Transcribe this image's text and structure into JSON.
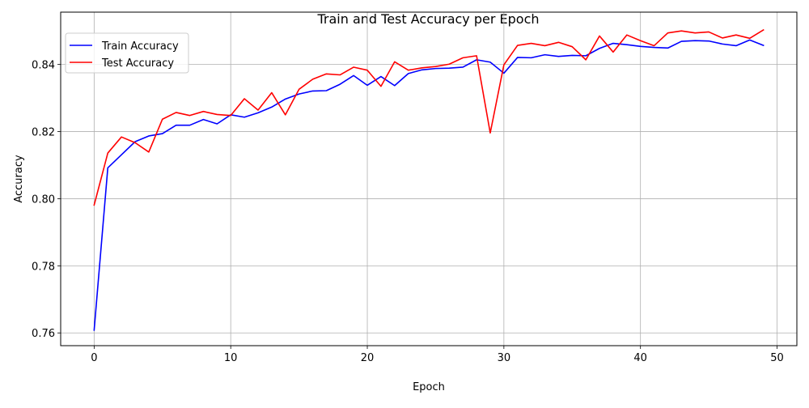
{
  "chart_data": {
    "type": "line",
    "title": "Train and Test Accuracy per Epoch",
    "xlabel": "Epoch",
    "ylabel": "Accuracy",
    "xlim": [
      -2.45,
      51.45
    ],
    "ylim": [
      0.7562,
      0.8556
    ],
    "x_ticks": [
      0,
      10,
      20,
      30,
      40,
      50
    ],
    "y_ticks": [
      0.76,
      0.78,
      0.8,
      0.82,
      0.84
    ],
    "x_tick_labels": [
      "0",
      "10",
      "20",
      "30",
      "40",
      "50"
    ],
    "y_tick_labels": [
      "0.76",
      "0.78",
      "0.80",
      "0.82",
      "0.84"
    ],
    "grid": true,
    "legend_position": "top-left",
    "x": [
      0,
      1,
      2,
      3,
      4,
      5,
      6,
      7,
      8,
      9,
      10,
      11,
      12,
      13,
      14,
      15,
      16,
      17,
      18,
      19,
      20,
      21,
      22,
      23,
      24,
      25,
      26,
      27,
      28,
      29,
      30,
      31,
      32,
      33,
      34,
      35,
      36,
      37,
      38,
      39,
      40,
      41,
      42,
      43,
      44,
      45,
      46,
      47,
      48,
      49
    ],
    "series": [
      {
        "name": "Train Accuracy",
        "color": "#0000ff",
        "values": [
          0.7608,
          0.8092,
          0.8131,
          0.817,
          0.8187,
          0.8194,
          0.8219,
          0.8219,
          0.8236,
          0.8223,
          0.825,
          0.8243,
          0.8256,
          0.8273,
          0.8297,
          0.8312,
          0.8321,
          0.8322,
          0.8341,
          0.8367,
          0.8338,
          0.8364,
          0.8337,
          0.8373,
          0.8384,
          0.8388,
          0.8389,
          0.8392,
          0.8414,
          0.8407,
          0.8374,
          0.8421,
          0.842,
          0.8429,
          0.8424,
          0.8427,
          0.8426,
          0.8448,
          0.8463,
          0.8459,
          0.8454,
          0.8451,
          0.8449,
          0.8469,
          0.8471,
          0.847,
          0.8461,
          0.8456,
          0.8473,
          0.8457
        ]
      },
      {
        "name": "Test Accuracy",
        "color": "#ff0000",
        "values": [
          0.7981,
          0.8136,
          0.8184,
          0.8167,
          0.8139,
          0.8237,
          0.8257,
          0.8248,
          0.826,
          0.8251,
          0.8248,
          0.8298,
          0.8264,
          0.8316,
          0.825,
          0.8326,
          0.8356,
          0.8372,
          0.8369,
          0.8392,
          0.8383,
          0.8335,
          0.8408,
          0.8383,
          0.839,
          0.8394,
          0.8401,
          0.842,
          0.8426,
          0.8196,
          0.8399,
          0.8457,
          0.8463,
          0.8456,
          0.8466,
          0.8453,
          0.8414,
          0.8485,
          0.8437,
          0.8488,
          0.8471,
          0.8456,
          0.8494,
          0.85,
          0.8494,
          0.8497,
          0.8479,
          0.8488,
          0.8478,
          0.8503
        ]
      }
    ]
  }
}
